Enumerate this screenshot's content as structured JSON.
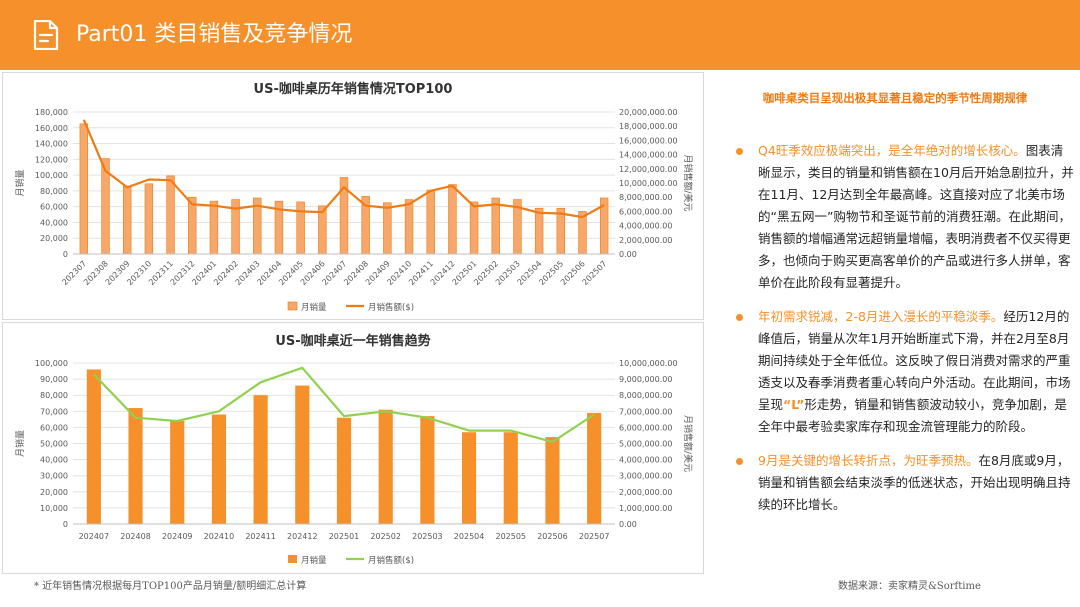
{
  "header": {
    "title": "Part01 类目销售及竞争情况",
    "icon": "document-icon",
    "bg_color": "#f5902a"
  },
  "right": {
    "heading": "咖啡桌类目呈现出极其显著且稳定的季节性周期规律",
    "points": [
      {
        "highlight": "Q4旺季效应极端突出，是全年绝对的增长核心。",
        "text_a": "图表清晰显示，类目的销量和销售额在10月后开始急剧拉升，并在11月、12月达到全年最高峰。这直接对应了北美市场的“黑五网一”购物节和圣诞节前的消费狂潮。在此期间，销售额的增幅通常远超销量增幅，表明消费者不仅买得更多，也倾向于购买更高客单价的产品或进行多人拼单，客单价在此阶段有显著提升。",
        "accent": "",
        "text_b": ""
      },
      {
        "highlight": "年初需求锐减，2-8月进入漫长的平稳淡季。",
        "text_a": "经历12月的峰值后，销量从次年1月开始断崖式下滑，并在2月至8月期间持续处于全年低位。这反映了假日消费对需求的严重透支以及春季消费者重心转向户外活动。在此期间，市场呈现",
        "accent": "“L”",
        "text_b": "形走势，销量和销售额波动较小，竞争加剧，是全年中最考验卖家库存和现金流管理能力的阶段。"
      },
      {
        "highlight": "9月是关键的增长转折点，为旺季预热。",
        "text_a": "在8月底或9月，销量和销售额会结束淡季的低迷状态，开始出现明确且持续的环比增长。",
        "accent": "",
        "text_b": ""
      }
    ]
  },
  "footnote": "* 近年销售情况根据每月TOP100产品月销量/额明细汇总计算",
  "source": "数据来源：卖家精灵&Sorftime",
  "chart_data": [
    {
      "type": "bar",
      "title": "US-咖啡桌历年销售情况TOP100",
      "ylabel": "月销量",
      "y2label": "月销售额/美元",
      "ylim": [
        0,
        180000
      ],
      "y2lim": [
        0,
        20000000
      ],
      "y_ticks": [
        "0",
        "20,000",
        "40,000",
        "60,000",
        "80,000",
        "100,000",
        "120,000",
        "140,000",
        "160,000",
        "180,000"
      ],
      "y2_ticks": [
        "0.00",
        "2,000,000.00",
        "4,000,000.00",
        "6,000,000.00",
        "8,000,000.00",
        "10,000,000.00",
        "12,000,000.00",
        "14,000,000.00",
        "16,000,000.00",
        "18,000,000.00",
        "20,000,000.00"
      ],
      "categories": [
        "202307",
        "202308",
        "202309",
        "202310",
        "202311",
        "202312",
        "202401",
        "202402",
        "202403",
        "202404",
        "202405",
        "202406",
        "202407",
        "202408",
        "202409",
        "202410",
        "202411",
        "202412",
        "202501",
        "202502",
        "202503",
        "202504",
        "202505",
        "202506",
        "202507"
      ],
      "series": [
        {
          "name": "月销量",
          "kind": "bar",
          "axis": "left",
          "color": "#f5a86a",
          "values": [
            165000,
            121000,
            86000,
            89000,
            99000,
            72000,
            67000,
            69000,
            71000,
            67000,
            66000,
            61000,
            97000,
            73000,
            65000,
            69000,
            81000,
            88000,
            66000,
            71000,
            69000,
            58000,
            58000,
            54000,
            71000
          ]
        },
        {
          "name": "月销售额($)",
          "kind": "line",
          "axis": "right",
          "color": "#f07b12",
          "values": [
            18900000,
            11700000,
            9400000,
            10500000,
            10400000,
            7000000,
            6800000,
            6400000,
            6800000,
            6300000,
            6000000,
            5900000,
            9400000,
            6800000,
            6500000,
            7000000,
            8900000,
            9600000,
            6700000,
            7000000,
            6600000,
            5800000,
            5700000,
            5200000,
            6900000
          ]
        }
      ],
      "legend": "bottom",
      "grid": true
    },
    {
      "type": "bar",
      "title": "US-咖啡桌近一年销售趋势",
      "ylabel": "月销量",
      "y2label": "月销售额/美元",
      "ylim": [
        0,
        100000
      ],
      "y2lim": [
        0,
        10000000
      ],
      "y_ticks": [
        "0",
        "10,000",
        "20,000",
        "30,000",
        "40,000",
        "50,000",
        "60,000",
        "70,000",
        "80,000",
        "90,000",
        "100,000"
      ],
      "y2_ticks": [
        "0.00",
        "1,000,000.00",
        "2,000,000.00",
        "3,000,000.00",
        "4,000,000.00",
        "5,000,000.00",
        "6,000,000.00",
        "7,000,000.00",
        "8,000,000.00",
        "9,000,000.00",
        "10,000,000.00"
      ],
      "categories": [
        "202407",
        "202408",
        "202409",
        "202410",
        "202411",
        "202412",
        "202501",
        "202502",
        "202503",
        "202504",
        "202505",
        "202506",
        "202507"
      ],
      "series": [
        {
          "name": "月销量",
          "kind": "bar",
          "axis": "left",
          "color": "#f5902a",
          "values": [
            96000,
            72000,
            64000,
            68000,
            80000,
            86000,
            66000,
            71000,
            67000,
            57000,
            57000,
            54000,
            69000
          ]
        },
        {
          "name": "月销售额($)",
          "kind": "line",
          "axis": "right",
          "color": "#92d050",
          "values": [
            9300000,
            6600000,
            6400000,
            7000000,
            8800000,
            9700000,
            6700000,
            7000000,
            6600000,
            5800000,
            5800000,
            5100000,
            6800000
          ]
        }
      ],
      "legend": "bottom",
      "grid": true
    }
  ]
}
